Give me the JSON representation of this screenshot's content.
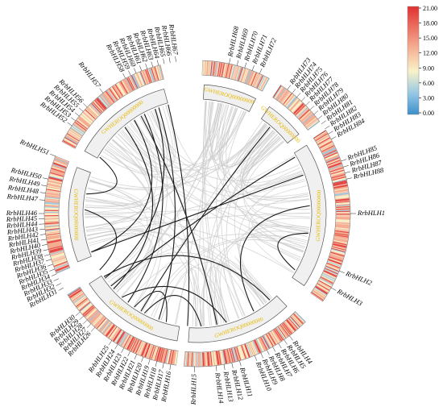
{
  "chromosome_label": "GWHEROQ00000000",
  "colorbar": {
    "ticks": [
      "21.00",
      "18.00",
      "15.00",
      "12.00",
      "9.00",
      "6.00",
      "3.00",
      "0.00"
    ],
    "colors": [
      "#e03030",
      "#f4a58a",
      "#f9f3c8",
      "#8ec4e6",
      "#3b8fc9"
    ]
  },
  "colors": {
    "intra_link": "#cccccc",
    "segmental_link": "#1a1a1a",
    "chrom_fill": "#f0f0f0",
    "chrom_text": "#e8b800"
  },
  "genes": [
    "RrbHLH1",
    "RrbHLH2",
    "RrbHLH3",
    "RrbHLH4",
    "RrbHLH5",
    "RrbHLH6",
    "RrbHLH7",
    "RrbHLH8",
    "RrbHLH9",
    "RrbHLH10",
    "RrbHLH11",
    "RrbHLH12",
    "RrbHLH13",
    "RrbHLH14",
    "RrbHLH15",
    "RrbHLH16",
    "RrbHLH17",
    "RrbHLH18",
    "RrbHLH19",
    "RrbHLH20",
    "RrbHLH21",
    "RrbHLH22",
    "RrbHLH23",
    "RrbHLH24",
    "RrbHLH25",
    "RrbHLH26",
    "RrbHLH27",
    "RrbHLH28",
    "RrbHLH29",
    "RrbHLH30",
    "RrbHLH31",
    "RrbHLH32",
    "RrbHLH33",
    "RrbHLH34",
    "RrbHLH35",
    "RrbHLH36",
    "RrbHLH37",
    "RrbHLH38",
    "RrbHLH39",
    "RrbHLH40",
    "RrbHLH41",
    "RrbHLH42",
    "RrbHLH43",
    "RrbHLH44",
    "RrbHLH45",
    "RrbHLH46",
    "RrbHLH47",
    "RrbHLH48",
    "RrbHLH49",
    "RrbHLH50",
    "RrbHLH51",
    "RrbHLH52",
    "RrbHLH53",
    "RrbHLH54",
    "RrbHLH55",
    "RrbHLH56",
    "RrbHLH57",
    "RrbHLH58",
    "RrbHLH59",
    "RrbHLH60",
    "RrbHLH61",
    "RrbHLH62",
    "RrbHLH63",
    "RrbHLH64",
    "RrbHLH65",
    "RrbHLH66",
    "RrbHLH67",
    "RrbHLH68",
    "RrbHLH69",
    "RrbHLH70",
    "RrbHLH71",
    "RrbHLH72",
    "RrbHLH73",
    "RrbHLH74",
    "RrbHLH75",
    "RrbHLH76",
    "RrbHLH77",
    "RrbHLH78",
    "RrbHLH79",
    "RrbHLH80",
    "RrbHLH81",
    "RrbHLH82",
    "RrbHLH83",
    "RrbHLH84",
    "RrbHLH85",
    "RrbHLH86",
    "RrbHLH87",
    "RrbHLH88"
  ]
}
